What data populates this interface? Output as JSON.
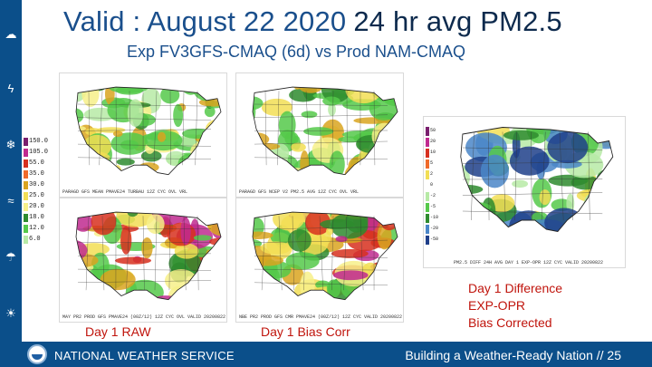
{
  "title": {
    "main": "Valid : August 22 2020",
    "emphasis": "24 hr avg PM2.5"
  },
  "subtitle": "Exp FV3GFS-CMAQ (6d) vs  Prod NAM-CMAQ",
  "legend": {
    "labels": [
      "150.0",
      "105.0",
      "55.0",
      "35.0",
      "30.0",
      "25.0",
      "20.0",
      "18.0",
      "12.0",
      "6.0"
    ],
    "colors": [
      "#7a1f6e",
      "#c02a8f",
      "#d7301f",
      "#f06a2a",
      "#d9a420",
      "#f2de55",
      "#f7f08a",
      "#2e8b2e",
      "#55c94a",
      "#b7eaa6"
    ]
  },
  "panels": [
    {
      "name": "exp-fv3gfs-panel",
      "caption": "PARAGD GFS MEAN PMAVE24 TURBAU 12Z CYC OVL VRL"
    },
    {
      "name": "prod-nam-panel",
      "caption": "PARAGD GFS NCEP V2 PM2.5 AVG 12Z CYC OVL VRL"
    },
    {
      "name": "day1-raw-panel",
      "caption": "MAY PR2 PROD GFS PMAVE24 (00Z/12) 12Z CYC OVL VALID 20200822"
    },
    {
      "name": "day1-bias-corr-panel",
      "caption": "NBE PR2 PROD GFS CMR PMAVE24 (00Z/12) 12Z CYC VALID 20200822"
    }
  ],
  "diff_scale": {
    "labels": [
      "50",
      "20",
      "10",
      "5",
      "2",
      "0",
      "-2",
      "-5",
      "-10",
      "-20",
      "-50"
    ],
    "colors": [
      "#7a1f6e",
      "#c02a8f",
      "#d7301f",
      "#f06a2a",
      "#f2de55",
      "#ffffff",
      "#b7eaa6",
      "#55c94a",
      "#2e8b2e",
      "#4a86c8",
      "#1f3f8a"
    ]
  },
  "diff_caption": "PM2.5 DIFF 24H AVG DAY 1 EXP-OPR 12Z CYC VALID 20200822",
  "labels": {
    "day1_raw": "Day 1  RAW",
    "day1_bias": "Day 1 Bias Corr",
    "diff_line1": "Day 1 Difference",
    "diff_line2": "EXP-OPR",
    "diff_line3": "Bias Corrected"
  },
  "footer": {
    "agency": "NATIONAL WEATHER SERVICE",
    "tagline": "Building a Weather-Ready Nation  //  25"
  },
  "colors": {
    "sidebar": "#0b4f8a",
    "title": "#1a4f8c",
    "label_red": "#c0140c"
  },
  "sidebar_icons": [
    "cloud-icon",
    "lightning-icon",
    "snow-icon",
    "wind-icon",
    "rain-icon",
    "sun-icon"
  ]
}
